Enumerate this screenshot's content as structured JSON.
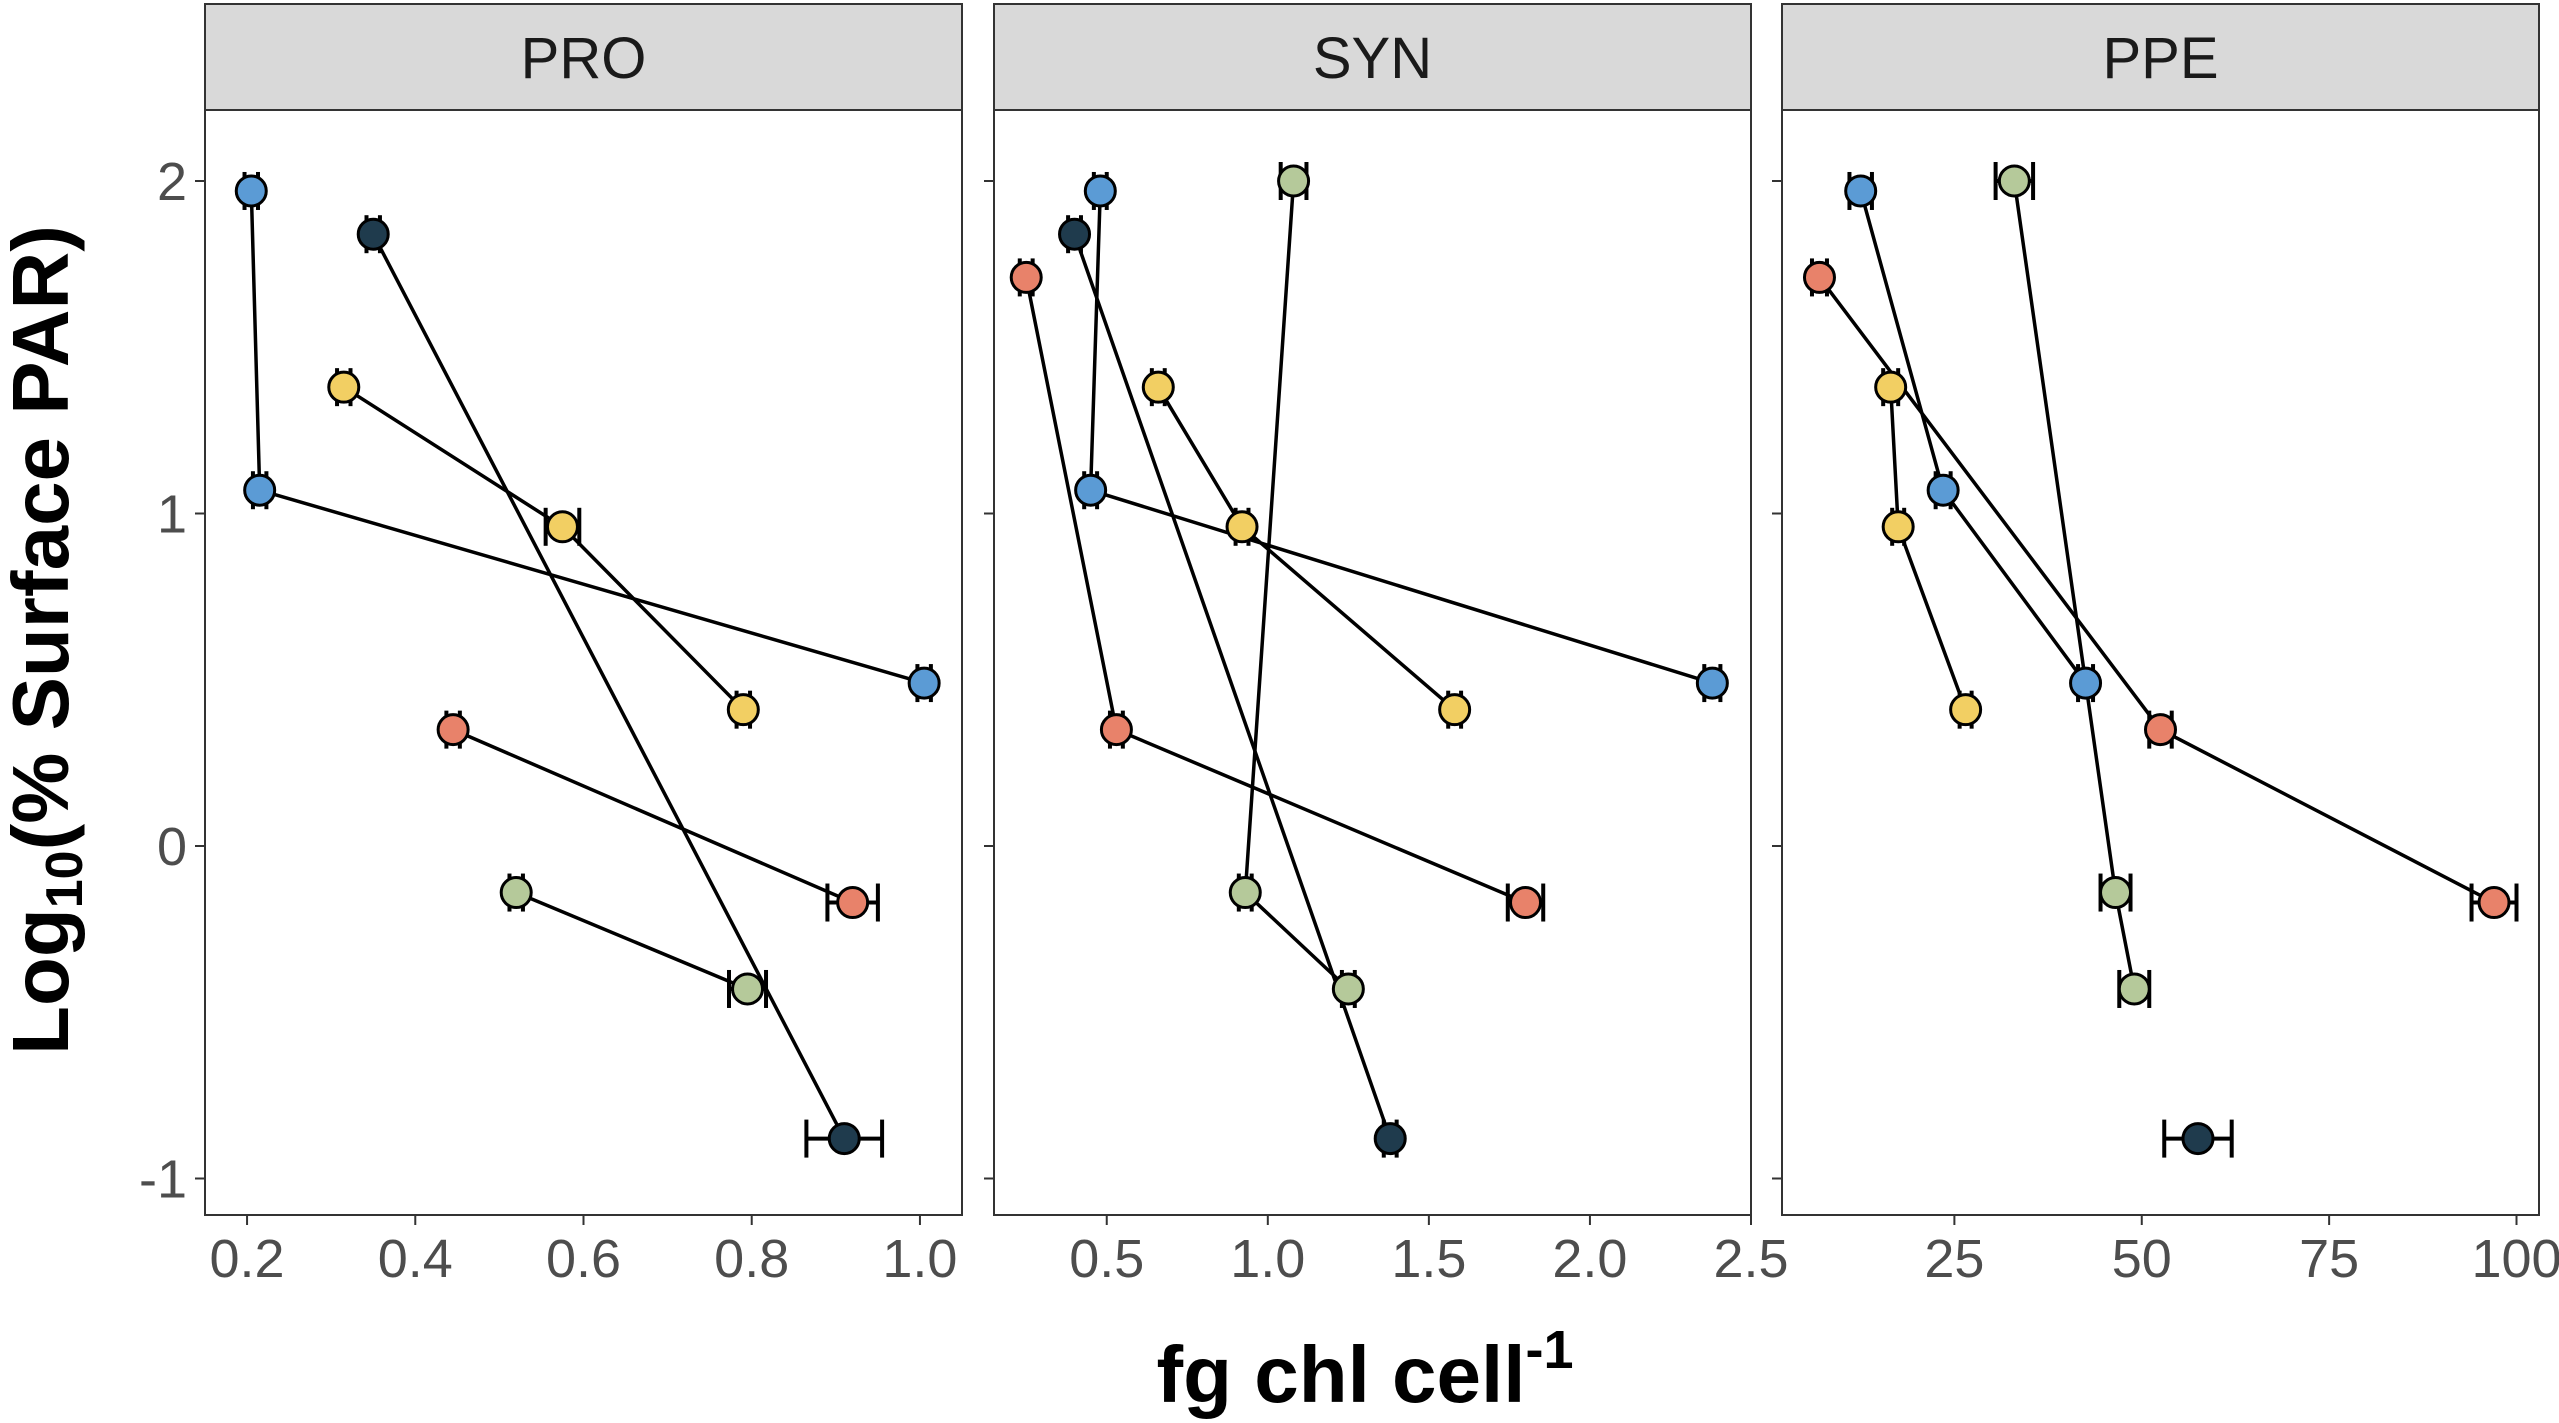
{
  "chart_data": {
    "type": "scatter",
    "facet_by": "group",
    "xlabel": "fg chl cell",
    "xlabel_sup": "-1",
    "ylabel": "Log",
    "ylabel_sub": "10",
    "ylabel_rest": "(% Surface PAR)",
    "y_ticks": [
      {
        "value": -1,
        "label": "-1"
      },
      {
        "value": 0,
        "label": "0"
      },
      {
        "value": 1,
        "label": "1"
      },
      {
        "value": 2,
        "label": "2"
      }
    ],
    "ylim": [
      -1.1,
      2.25
    ],
    "series_colors": {
      "blue": "#5b9bd5",
      "navy": "#1f3b4d",
      "yellow": "#f2cf63",
      "orange": "#e8826a",
      "green": "#b5c99a"
    },
    "panels": [
      {
        "title": "PRO",
        "xlim": [
          0.15,
          1.05
        ],
        "x_ticks": [
          {
            "value": 0.2,
            "label": "0.2"
          },
          {
            "value": 0.4,
            "label": "0.4"
          },
          {
            "value": 0.6,
            "label": "0.6"
          },
          {
            "value": 0.8,
            "label": "0.8"
          },
          {
            "value": 1.0,
            "label": "1.0"
          }
        ],
        "series": [
          {
            "color": "blue",
            "points": [
              {
                "x": 0.205,
                "y": 1.97,
                "xerr": 0.008
              },
              {
                "x": 0.215,
                "y": 1.07,
                "xerr": 0.008
              },
              {
                "x": 1.005,
                "y": 0.49,
                "xerr": 0.008
              }
            ]
          },
          {
            "color": "navy",
            "points": [
              {
                "x": 0.35,
                "y": 1.84,
                "xerr": 0.008
              },
              {
                "x": 0.91,
                "y": -0.88,
                "xerr": 0.045
              }
            ]
          },
          {
            "color": "yellow",
            "points": [
              {
                "x": 0.315,
                "y": 1.38,
                "xerr": 0.008
              },
              {
                "x": 0.575,
                "y": 0.96,
                "xerr": 0.02
              },
              {
                "x": 0.79,
                "y": 0.41,
                "xerr": 0.008
              }
            ]
          },
          {
            "color": "orange",
            "points": [
              {
                "x": 0.445,
                "y": 0.35,
                "xerr": 0.008
              },
              {
                "x": 0.92,
                "y": -0.17,
                "xerr": 0.03
              }
            ]
          },
          {
            "color": "green",
            "points": [
              {
                "x": 0.52,
                "y": -0.14,
                "xerr": 0.008
              },
              {
                "x": 0.795,
                "y": -0.43,
                "xerr": 0.022
              }
            ]
          }
        ]
      },
      {
        "title": "SYN",
        "xlim": [
          0.15,
          2.5
        ],
        "x_ticks": [
          {
            "value": 0.5,
            "label": "0.5"
          },
          {
            "value": 1.0,
            "label": "1.0"
          },
          {
            "value": 1.5,
            "label": "1.5"
          },
          {
            "value": 2.0,
            "label": "2.0"
          },
          {
            "value": 2.5,
            "label": "2.5"
          }
        ],
        "series": [
          {
            "color": "blue",
            "points": [
              {
                "x": 0.48,
                "y": 1.97,
                "xerr": 0.02
              },
              {
                "x": 0.45,
                "y": 1.07,
                "xerr": 0.02
              },
              {
                "x": 2.38,
                "y": 0.49,
                "xerr": 0.025
              }
            ]
          },
          {
            "color": "navy",
            "points": [
              {
                "x": 0.4,
                "y": 1.84,
                "xerr": 0.02
              },
              {
                "x": 1.38,
                "y": -0.88,
                "xerr": 0.02
              }
            ]
          },
          {
            "color": "yellow",
            "points": [
              {
                "x": 0.66,
                "y": 1.38,
                "xerr": 0.02
              },
              {
                "x": 0.92,
                "y": 0.96,
                "xerr": 0.02
              },
              {
                "x": 1.58,
                "y": 0.41,
                "xerr": 0.02
              }
            ]
          },
          {
            "color": "orange",
            "points": [
              {
                "x": 0.25,
                "y": 1.71,
                "xerr": 0.02
              },
              {
                "x": 0.53,
                "y": 0.35,
                "xerr": 0.02
              },
              {
                "x": 1.8,
                "y": -0.17,
                "xerr": 0.055
              }
            ]
          },
          {
            "color": "green",
            "points": [
              {
                "x": 1.08,
                "y": 2.0,
                "xerr": 0.04
              },
              {
                "x": 0.93,
                "y": -0.14,
                "xerr": 0.02
              },
              {
                "x": 1.25,
                "y": -0.43,
                "xerr": 0.02
              }
            ]
          }
        ]
      },
      {
        "title": "PPE",
        "xlim": [
          2,
          103
        ],
        "x_ticks": [
          {
            "value": 25,
            "label": "25"
          },
          {
            "value": 50,
            "label": "50"
          },
          {
            "value": 75,
            "label": "75"
          },
          {
            "value": 100,
            "label": "100"
          }
        ],
        "series": [
          {
            "color": "blue",
            "points": [
              {
                "x": 12.5,
                "y": 1.97,
                "xerr": 1.5
              },
              {
                "x": 23.5,
                "y": 1.07,
                "xerr": 1.0
              },
              {
                "x": 42.5,
                "y": 0.49,
                "xerr": 1.0
              }
            ]
          },
          {
            "color": "navy",
            "points": [
              {
                "x": 57.5,
                "y": -0.88,
                "xerr": 4.5
              }
            ]
          },
          {
            "color": "yellow",
            "points": [
              {
                "x": 16.5,
                "y": 1.38,
                "xerr": 1.0
              },
              {
                "x": 17.5,
                "y": 0.96,
                "xerr": 0.8
              },
              {
                "x": 26.5,
                "y": 0.41,
                "xerr": 0.8
              }
            ]
          },
          {
            "color": "orange",
            "points": [
              {
                "x": 7,
                "y": 1.71,
                "xerr": 1.0
              },
              {
                "x": 52.5,
                "y": 0.35,
                "xerr": 1.5
              },
              {
                "x": 97,
                "y": -0.17,
                "xerr": 3.0
              }
            ]
          },
          {
            "color": "green",
            "points": [
              {
                "x": 33,
                "y": 2.0,
                "xerr": 2.5
              },
              {
                "x": 46.5,
                "y": -0.14,
                "xerr": 2.0
              },
              {
                "x": 49,
                "y": -0.43,
                "xerr": 2.0
              }
            ]
          }
        ]
      }
    ]
  }
}
